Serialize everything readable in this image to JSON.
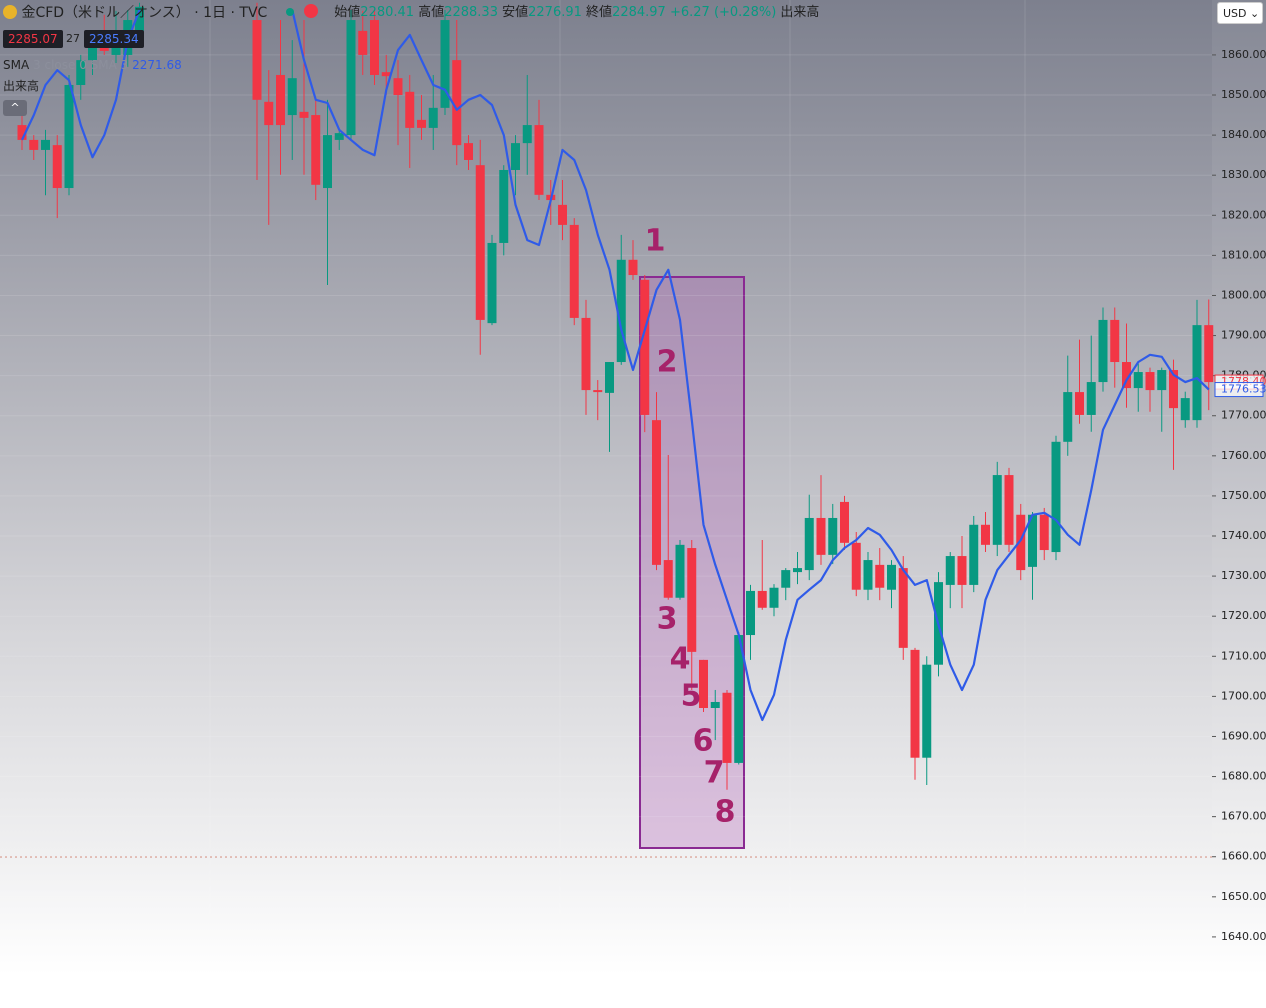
{
  "header": {
    "symbol": "金CFD（米ドル／オンス）",
    "interval": "1日",
    "source": "TVC",
    "open_label": "始値",
    "open": "2280.41",
    "high_label": "高値",
    "high": "2288.33",
    "low_label": "安値",
    "low": "2276.91",
    "close_label": "終値",
    "close": "2284.97",
    "change": "+6.27 (+0.28%)",
    "volume_label": "出来高",
    "bid": "2285.07",
    "spread": "27",
    "ask": "2285.34",
    "sma_label": "SMA",
    "sma_params": "3 close 0 SMA 3",
    "sma_value": "2271.68",
    "volume_row": "出来高",
    "currency": "USD"
  },
  "chart_data": {
    "type": "candlestick",
    "up_color": "#089981",
    "down_color": "#f23645",
    "open": [
      1842.5,
      1838.8,
      1836.3,
      1837.5,
      1826.8,
      1852.5,
      1858.7,
      1866,
      1860,
      1860,
      1866,
      null,
      null,
      null,
      null,
      null,
      null,
      null,
      null,
      null,
      1868.7,
      1848.3,
      1855,
      1845,
      1845.8,
      1845,
      1826.8,
      1838.8,
      1840,
      1866,
      1868.7,
      1855.7,
      1854.2,
      1850.8,
      1843.8,
      1841.8,
      1846.8,
      1858.7,
      1838,
      1832.5,
      1793.1,
      1813.1,
      1831.3,
      1838,
      1842.5,
      1825.1,
      1822.6,
      1817.6,
      1794.4,
      1776.4,
      1775.7,
      1783.4,
      1808.9,
      1803.9,
      1768.9,
      1734,
      1724.6,
      1737,
      1709.1,
      1697.1,
      1700.9,
      1683.4,
      1715.3,
      1726.3,
      1722.1,
      1727.1,
      1731,
      1731.5,
      1744.5,
      1735.3,
      1748.5,
      1738.3,
      1726.6,
      1732.8,
      1726.6,
      1732,
      1711.6,
      1684.7,
      1707.9,
      1727.8,
      1735,
      1727.8,
      1742.8,
      1737.8,
      1755.2,
      1745.3,
      1732.3,
      1745.3,
      1736,
      1763.5,
      1775.9,
      1770.2,
      1778.4,
      1793.9,
      1783.4,
      1776.9,
      1780.9,
      1776.4,
      1781.4,
      1768.9,
      1768.9,
      1792.6
    ],
    "high": [
      1846.3,
      1840,
      1841.3,
      1840,
      1855,
      1860,
      1866,
      1870,
      1871,
      1871.2,
      1873,
      null,
      null,
      null,
      null,
      null,
      null,
      null,
      null,
      null,
      1873,
      1856.2,
      1868.7,
      1863.7,
      1868.7,
      1848.8,
      1848.8,
      1841.3,
      1871.2,
      1871,
      1871.2,
      1860,
      1858.7,
      1855,
      1850,
      1855,
      1871.2,
      1868.7,
      1840,
      1838.8,
      1815.1,
      1832.5,
      1840,
      1855,
      1848.8,
      1828.8,
      1828.8,
      1819.3,
      1798.9,
      1778.9,
      1783.4,
      1815.1,
      1813.8,
      1805.1,
      1775.9,
      1760.2,
      1739,
      1739,
      1709.1,
      1701.6,
      1701.6,
      1716,
      1727.8,
      1739,
      1728,
      1732,
      1736,
      1750.3,
      1755.2,
      1748,
      1750,
      1741,
      1736,
      1737,
      1734,
      1735,
      1712.1,
      1710,
      1731,
      1736,
      1740,
      1745,
      1746,
      1758.5,
      1757,
      1748,
      1746,
      1747,
      1765,
      1785,
      1789,
      1790,
      1797,
      1797,
      1793,
      1783,
      1782,
      1782,
      1784,
      1776,
      1798.9,
      1799
    ],
    "low": [
      1836.3,
      1833.8,
      1825,
      1819.3,
      1825,
      1848.8,
      1855,
      1860,
      1858,
      1857,
      1863,
      null,
      null,
      null,
      null,
      null,
      null,
      null,
      null,
      null,
      1828.8,
      1817.6,
      1830.1,
      1833.8,
      1830.1,
      1823.8,
      1802.6,
      1836.3,
      1838.8,
      1855,
      1852.5,
      1850,
      1837.5,
      1831.8,
      1838.8,
      1836.3,
      1845,
      1832.5,
      1831.3,
      1785.2,
      1792.6,
      1810,
      1825,
      1830.1,
      1823.8,
      1817.6,
      1813.8,
      1792.6,
      1770.2,
      1768.9,
      1761,
      1782.7,
      1803.9,
      1765.9,
      1731.5,
      1724.1,
      1724.1,
      1701.6,
      1696.1,
      1689.1,
      1676.7,
      1683,
      1709.1,
      1721.6,
      1720,
      1724,
      1728,
      1729,
      1732.8,
      1733,
      1736.5,
      1725,
      1724,
      1724,
      1722,
      1709.1,
      1679.2,
      1677.9,
      1705,
      1722,
      1722,
      1726,
      1736,
      1735,
      1736,
      1729,
      1724.1,
      1734,
      1734,
      1760,
      1768,
      1766,
      1776,
      1777,
      1772,
      1771,
      1771,
      1766,
      1756.5,
      1767,
      1767,
      1771.4
    ],
    "close": [
      1838.8,
      1836.3,
      1838.8,
      1826.8,
      1852.5,
      1858.7,
      1863.7,
      1861,
      1866,
      1868.7,
      1872,
      null,
      null,
      null,
      null,
      null,
      null,
      null,
      null,
      null,
      1848.8,
      1842.5,
      1842.5,
      1854.2,
      1844.3,
      1827.6,
      1840,
      1840.5,
      1868.7,
      1860,
      1855,
      1854.7,
      1850,
      1841.8,
      1841.8,
      1846.8,
      1868.7,
      1837.5,
      1833.8,
      1793.9,
      1813.1,
      1831.3,
      1838,
      1842.5,
      1825.1,
      1823.8,
      1817.6,
      1794.4,
      1776.4,
      1775.9,
      1783.4,
      1808.9,
      1805.1,
      1770.2,
      1732.8,
      1724.6,
      1737.8,
      1711.1,
      1697.1,
      1698.6,
      1683.4,
      1715.3,
      1726.3,
      1722.1,
      1727.1,
      1731.5,
      1732,
      1744.5,
      1735.3,
      1744.5,
      1738.3,
      1726.6,
      1734,
      1727.1,
      1732.8,
      1712.1,
      1684.7,
      1707.9,
      1728.5,
      1735,
      1727.8,
      1742.8,
      1737.8,
      1755.2,
      1737.8,
      1731.5,
      1745.3,
      1736.5,
      1763.5,
      1775.9,
      1770.2,
      1778.4,
      1793.9,
      1783.4,
      1776.9,
      1780.9,
      1776.4,
      1781.4,
      1771.9,
      1774.4,
      1792.6,
      1778.4
    ],
    "sma": {
      "color": "#2f5be8",
      "values": [
        1838.8,
        1845,
        1852.5,
        1856.2,
        1853.7,
        1842.5,
        1834.5,
        1840,
        1848.8,
        1863.7,
        1871.2,
        null,
        null,
        null,
        null,
        null,
        null,
        null,
        null,
        null,
        null,
        null,
        null,
        1871.2,
        1858.7,
        1848.8,
        1848,
        1841.3,
        1838.8,
        1836.3,
        1835,
        1851.3,
        1861.2,
        1865,
        1858.7,
        1852.5,
        1851.3,
        1846.3,
        1848.8,
        1850,
        1847.5,
        1840,
        1822.6,
        1813.8,
        1812.6,
        1823.8,
        1836.3,
        1833.8,
        1826.3,
        1815.1,
        1806.4,
        1791.4,
        1781.4,
        1791.4,
        1801.4,
        1806.4,
        1793.9,
        1768.9,
        1742.8,
        1732.8,
        1724.1,
        1715.3,
        1701.6,
        1694.1,
        1700.4,
        1714.1,
        1724.1,
        1726.6,
        1729,
        1734,
        1737,
        1739,
        1742,
        1740.3,
        1736.5,
        1731.5,
        1727.8,
        1729,
        1717.8,
        1707.9,
        1701.6,
        1707.9,
        1724.1,
        1731.5,
        1735.3,
        1739,
        1745.3,
        1745.8,
        1744,
        1740.3,
        1737.8,
        1751.5,
        1766.5,
        1772.7,
        1778.9,
        1783.4,
        1785.2,
        1784.7,
        1780.2,
        1778.4,
        1779.4,
        1776.53
      ]
    },
    "ylim": [
      1630.5,
      1873.7
    ],
    "yticks": [
      {
        "value": 1640,
        "label": "1640.00"
      },
      {
        "value": 1650,
        "label": "1650.00"
      },
      {
        "value": 1660,
        "label": "1660.00"
      },
      {
        "value": 1670,
        "label": "1670.00"
      },
      {
        "value": 1680,
        "label": "1680.00"
      },
      {
        "value": 1690,
        "label": "1690.00"
      },
      {
        "value": 1700,
        "label": "1700.00"
      },
      {
        "value": 1710,
        "label": "1710.00"
      },
      {
        "value": 1720,
        "label": "1720.00"
      },
      {
        "value": 1730,
        "label": "1730.00"
      },
      {
        "value": 1740,
        "label": "1740.00"
      },
      {
        "value": 1750,
        "label": "1750.00"
      },
      {
        "value": 1760,
        "label": "1760.00"
      },
      {
        "value": 1770,
        "label": "1770.00"
      },
      {
        "value": 1780,
        "label": "1780.00"
      },
      {
        "value": 1790,
        "label": "1790.00"
      },
      {
        "value": 1800,
        "label": "1800.00"
      },
      {
        "value": 1810,
        "label": "1810.00"
      },
      {
        "value": 1820,
        "label": "1820.00"
      },
      {
        "value": 1830,
        "label": "1830.00"
      },
      {
        "value": 1840,
        "label": "1840.00"
      },
      {
        "value": 1850,
        "label": "1850.00"
      },
      {
        "value": 1860,
        "label": "1860.00"
      }
    ],
    "price_labels": [
      {
        "value": 1778.4,
        "label": "1778.40",
        "color": "#f23645"
      },
      {
        "value": 1776.53,
        "label": "1776.53",
        "color": "#2f5be8"
      }
    ],
    "annotations": [
      "1",
      "2",
      "3",
      "4",
      "5",
      "6",
      "7",
      "8"
    ]
  }
}
